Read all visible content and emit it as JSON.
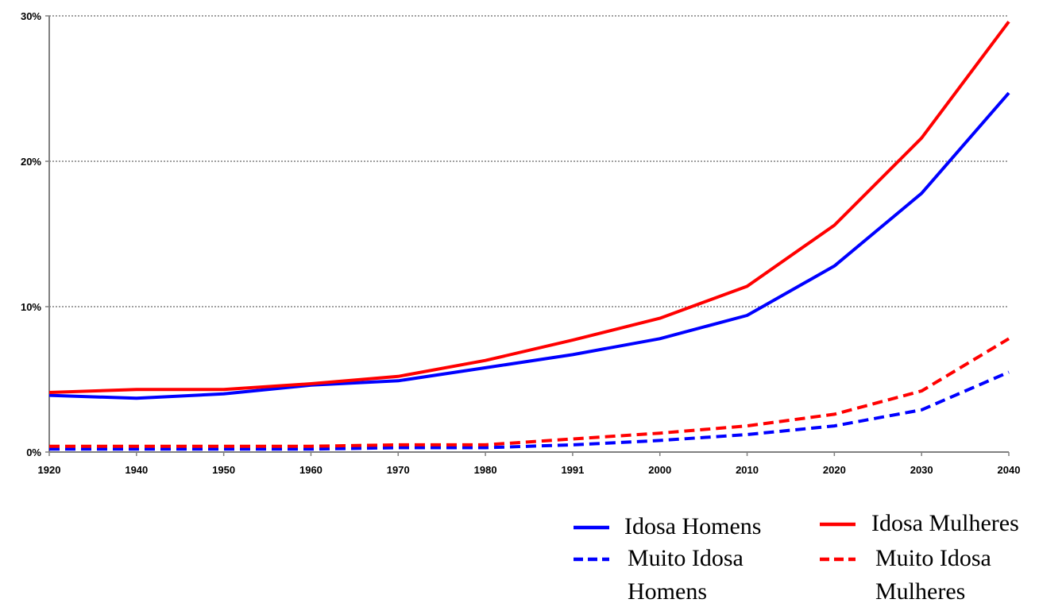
{
  "chart_data": {
    "type": "line",
    "title": "",
    "xlabel": "",
    "ylabel": "",
    "categories": [
      "1920",
      "1940",
      "1950",
      "1960",
      "1970",
      "1980",
      "1991",
      "2000",
      "2010",
      "2020",
      "2030",
      "2040"
    ],
    "y_tick_labels": [
      "0%",
      "10%",
      "20%",
      "30%"
    ],
    "ylim": [
      0,
      30
    ],
    "grid": "horizontal dotted",
    "legend_placement": "bottom-right",
    "series": [
      {
        "name": "Idosa Homens",
        "color": "#0000ff",
        "dash": "solid",
        "values": [
          3.9,
          3.7,
          4.0,
          4.6,
          4.9,
          5.8,
          6.7,
          7.8,
          9.4,
          12.8,
          17.8,
          24.7
        ]
      },
      {
        "name": "Idosa Mulheres",
        "color": "#ff0000",
        "dash": "solid",
        "values": [
          4.1,
          4.3,
          4.3,
          4.7,
          5.2,
          6.3,
          7.7,
          9.2,
          11.4,
          15.6,
          21.6,
          29.6
        ]
      },
      {
        "name": "Muito Idosa Homens",
        "color": "#0000ff",
        "dash": "dashed",
        "values": [
          0.2,
          0.2,
          0.2,
          0.2,
          0.3,
          0.3,
          0.5,
          0.8,
          1.2,
          1.8,
          2.9,
          5.5
        ]
      },
      {
        "name": "Muito Idosa Mulheres",
        "color": "#ff0000",
        "dash": "dashed",
        "values": [
          0.4,
          0.4,
          0.4,
          0.4,
          0.5,
          0.5,
          0.9,
          1.3,
          1.8,
          2.6,
          4.2,
          7.8
        ]
      }
    ],
    "legend": [
      {
        "lines": [
          "Idosa Homens"
        ],
        "series": 0
      },
      {
        "lines": [
          "Idosa Mulheres"
        ],
        "series": 1
      },
      {
        "lines": [
          "Muito Idosa",
          "Homens"
        ],
        "series": 2
      },
      {
        "lines": [
          "Muito Idosa",
          "Mulheres"
        ],
        "series": 3
      }
    ]
  }
}
